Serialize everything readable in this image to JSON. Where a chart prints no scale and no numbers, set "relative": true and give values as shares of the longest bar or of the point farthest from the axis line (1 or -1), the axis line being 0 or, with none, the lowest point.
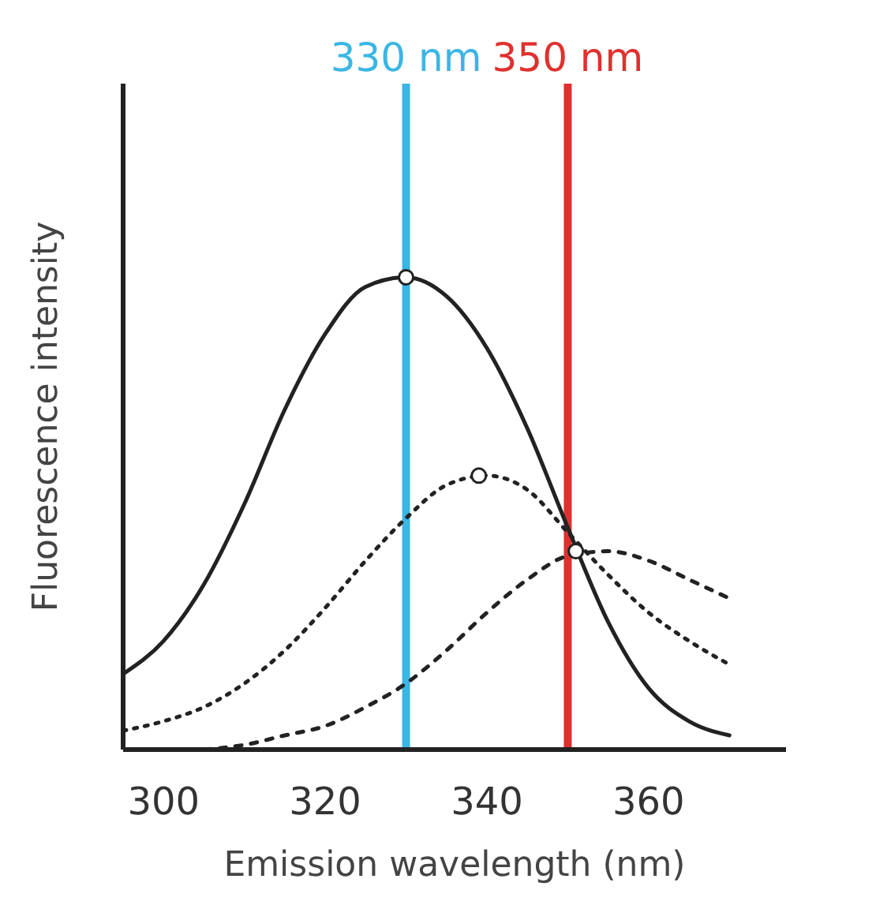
{
  "chart_data": {
    "type": "line",
    "relative": true,
    "xlabel": "Emission wavelength (nm)",
    "ylabel": "Fluorescence intensity",
    "xlim": [
      295,
      377
    ],
    "xticks": [
      300,
      320,
      340,
      360
    ],
    "grid": false,
    "series": [
      {
        "color": "#222222",
        "line_style": "solid",
        "marker": "none",
        "x": [
          295,
          300,
          305,
          310,
          315,
          320,
          325,
          330,
          335,
          340,
          345,
          350,
          355,
          360,
          365,
          370
        ],
        "values": [
          0.16,
          0.23,
          0.35,
          0.52,
          0.72,
          0.88,
          0.98,
          1.0,
          0.96,
          0.85,
          0.68,
          0.47,
          0.27,
          0.13,
          0.06,
          0.03
        ]
      },
      {
        "color": "#222222",
        "line_style": "dotted",
        "marker": "none",
        "x": [
          295,
          300,
          305,
          310,
          315,
          320,
          325,
          330,
          335,
          340,
          345,
          350,
          355,
          360,
          365,
          370
        ],
        "values": [
          0.04,
          0.06,
          0.09,
          0.14,
          0.21,
          0.3,
          0.4,
          0.49,
          0.56,
          0.58,
          0.55,
          0.46,
          0.37,
          0.29,
          0.23,
          0.18
        ]
      },
      {
        "color": "#222222",
        "line_style": "dashed",
        "marker": "none",
        "x": [
          305,
          310,
          315,
          320,
          325,
          330,
          335,
          340,
          345,
          350,
          355,
          360,
          365,
          370
        ],
        "values": [
          0,
          0.01,
          0.03,
          0.05,
          0.09,
          0.14,
          0.21,
          0.29,
          0.36,
          0.41,
          0.42,
          0.4,
          0.36,
          0.32
        ]
      },
      {
        "type": "scatter",
        "color": "#222222",
        "marker": "circle",
        "x": [
          330,
          339,
          351
        ],
        "values": [
          1.0,
          0.58,
          0.42
        ]
      }
    ],
    "ref_lines": [
      {
        "axis": "x",
        "value": 330,
        "label": "330 nm",
        "color": "#3ab6e5"
      },
      {
        "axis": "x",
        "value": 350,
        "label": "350 nm",
        "color": "#e0302e"
      }
    ]
  }
}
